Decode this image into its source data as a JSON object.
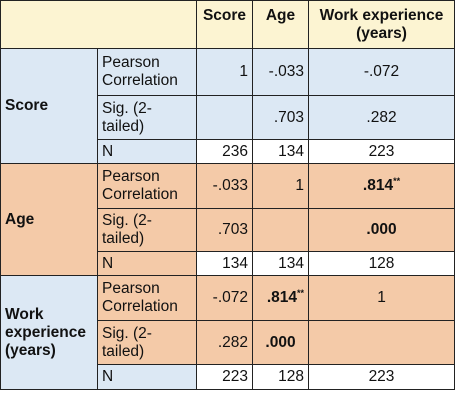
{
  "header": {
    "corner": "",
    "score": "Score",
    "age": "Age",
    "work": "Work experience (years)"
  },
  "groups": [
    {
      "label": "Score",
      "rows": [
        {
          "stat": "Pearson Correlation",
          "score": "1",
          "age": "-.033",
          "work": "-.072",
          "work_sig": ""
        },
        {
          "stat": "Sig. (2-tailed)",
          "score": "",
          "age": ".703",
          "work": ".282"
        },
        {
          "stat": "N",
          "score": "236",
          "age": "134",
          "work": "223"
        }
      ]
    },
    {
      "label": "Age",
      "rows": [
        {
          "stat": "Pearson Correlation",
          "score": "-.033",
          "age": "1",
          "work": ".814",
          "work_sig": "**"
        },
        {
          "stat": "Sig. (2-tailed)",
          "score": ".703",
          "age": "",
          "work": ".000"
        },
        {
          "stat": "N",
          "score": "134",
          "age": "134",
          "work": "128"
        }
      ]
    },
    {
      "label": "Work experience (years)",
      "rows": [
        {
          "stat": "Pearson Correlation",
          "score": "-.072",
          "age": ".814",
          "age_sig": "**",
          "work": "1"
        },
        {
          "stat": "Sig. (2-tailed)",
          "score": ".282",
          "age": ".000",
          "work": ""
        },
        {
          "stat": "N",
          "score": "223",
          "age": "128",
          "work": "223"
        }
      ]
    }
  ],
  "colors": {
    "header": "#fcf4d2",
    "blue": "#dce8f4",
    "peach": "#f4caa8",
    "border": "#222222"
  }
}
